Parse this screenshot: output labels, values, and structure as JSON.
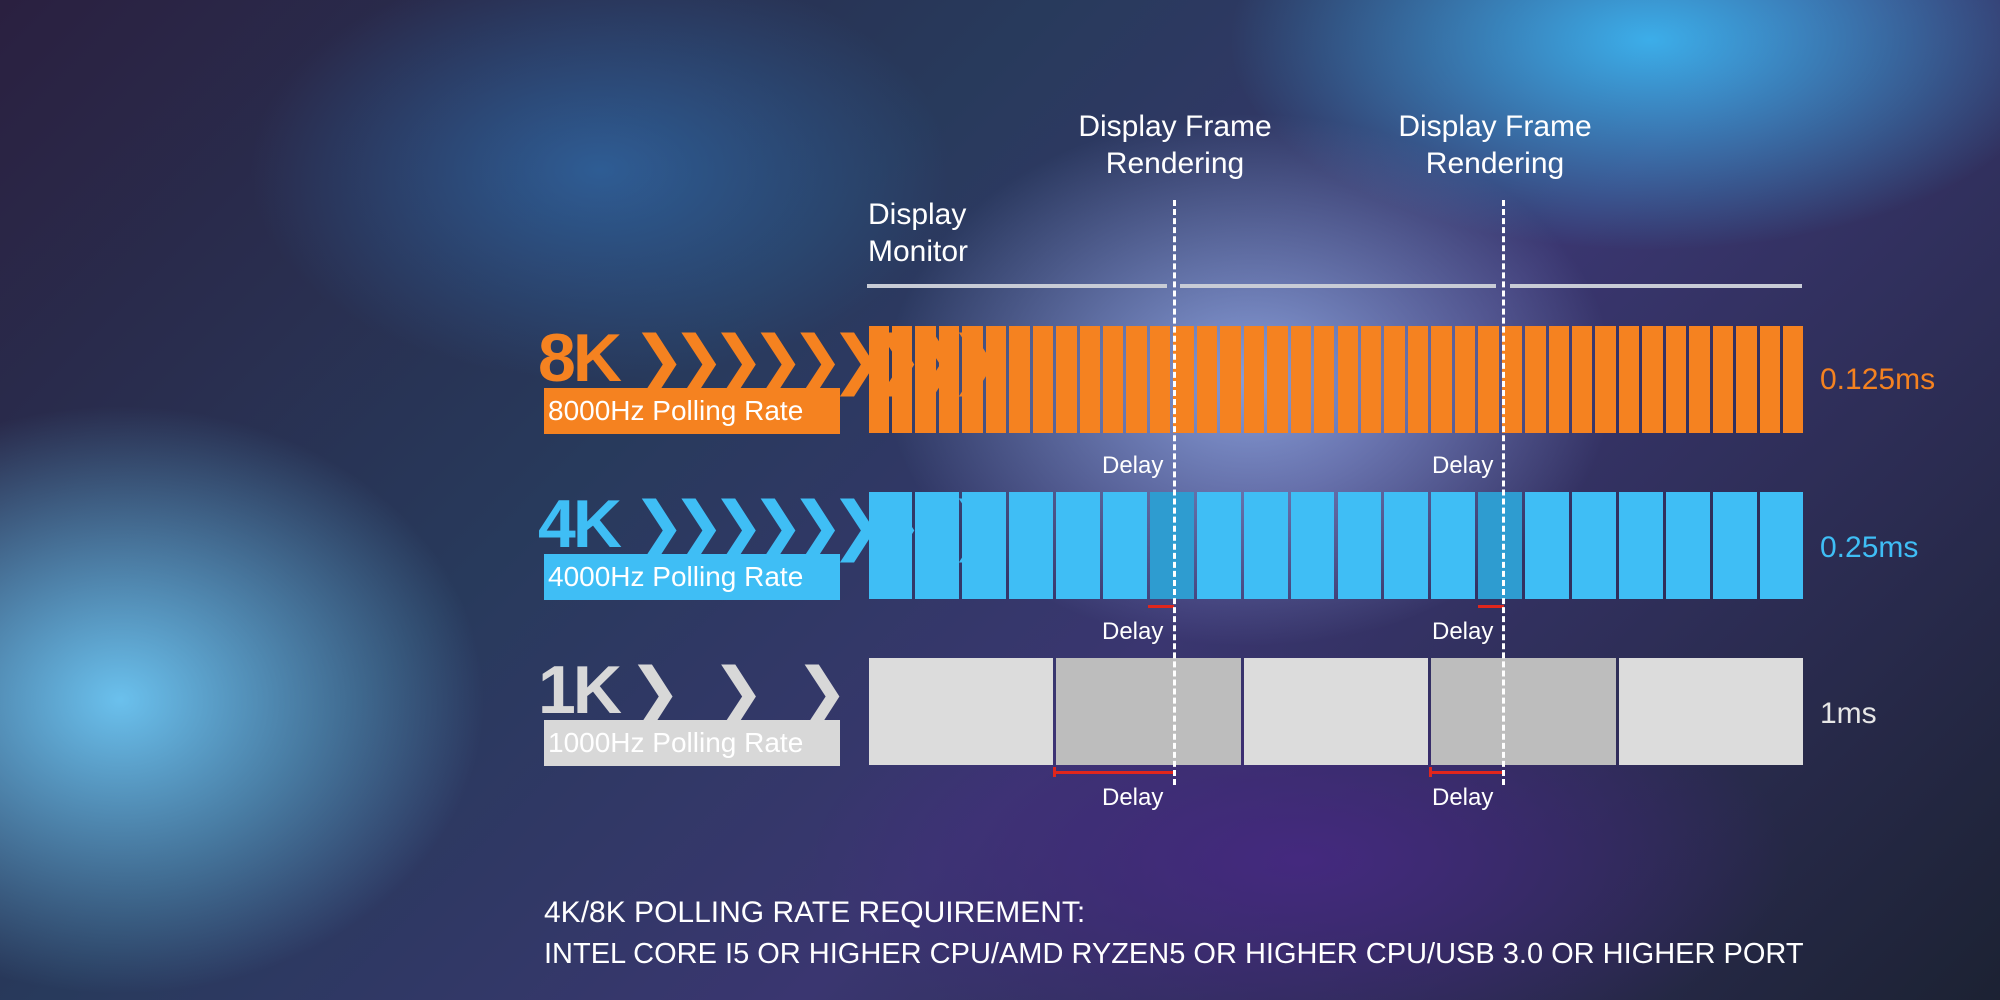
{
  "header": {
    "frame_label_1": [
      "Display Frame",
      "Rendering"
    ],
    "frame_label_2": [
      "Display Frame",
      "Rendering"
    ],
    "monitor_label": [
      "Display",
      "Monitor"
    ]
  },
  "rows": [
    {
      "tag": "8K",
      "rate_label": "8000Hz Polling Rate",
      "interval": "0.125ms",
      "color": "#f58220",
      "segments": 40,
      "delay_label": "Delay"
    },
    {
      "tag": "4K",
      "rate_label": "4000Hz Polling Rate",
      "interval": "0.25ms",
      "color": "#3fbef5",
      "segments": 20,
      "delay_label": "Delay"
    },
    {
      "tag": "1K",
      "rate_label": "1000Hz Polling Rate",
      "interval": "1ms",
      "color": "#dcdcdc",
      "segments": 5,
      "delay_label": "Delay"
    }
  ],
  "arrow_glyphs": {
    "dense": "❯❯❯❯❯❯❯❯❯",
    "sparse": "❯ ❯ ❯ ❯"
  },
  "footer": {
    "title": "4K/8K POLLING RATE REQUIREMENT:",
    "detail": "INTEL CORE I5 OR HIGHER CPU/AMD RYZEN5 OR HIGHER CPU/USB 3.0 OR HIGHER PORT"
  },
  "colors": {
    "orange": "#f58220",
    "blue": "#3fbef5",
    "gray": "#dcdcdc",
    "delay_red": "#e1261c"
  }
}
